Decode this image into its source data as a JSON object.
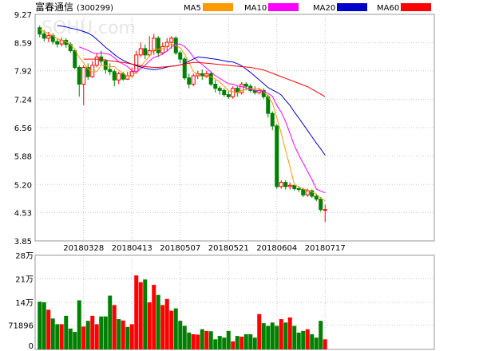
{
  "header": {
    "title": "富春通信",
    "code": "(300299)",
    "legend": [
      {
        "label": "MA5",
        "color": "#ff9900"
      },
      {
        "label": "MA10",
        "color": "#ff00ff"
      },
      {
        "label": "MA20",
        "color": "#0000cc"
      },
      {
        "label": "MA60",
        "color": "#ff0000"
      }
    ]
  },
  "watermark": "SOHU.com",
  "colors": {
    "up": "#ff0000",
    "down": "#008000",
    "grid": "#c8c8c8",
    "frame": "#999999"
  },
  "chart_data": [
    {
      "type": "candlestick",
      "title": "富春通信(300299)",
      "ylim": [
        3.85,
        9.27
      ],
      "yticks": [
        "9.27",
        "8.59",
        "7.92",
        "7.24",
        "6.56",
        "5.88",
        "5.20",
        "4.53",
        "3.85"
      ],
      "ytick_values": [
        9.27,
        8.59,
        7.92,
        7.24,
        6.56,
        5.88,
        5.2,
        4.53,
        3.85
      ],
      "xtick_labels": [
        "20180328",
        "20180413",
        "20180507",
        "20180521",
        "20180604",
        "20180717"
      ],
      "xtick_index": [
        10,
        21,
        32,
        43,
        54,
        65
      ],
      "ohlc": [
        [
          8.95,
          8.8,
          9.0,
          8.72
        ],
        [
          8.8,
          8.7,
          8.9,
          8.62
        ],
        [
          8.7,
          8.76,
          8.85,
          8.6
        ],
        [
          8.76,
          8.62,
          8.82,
          8.55
        ],
        [
          8.62,
          8.56,
          8.68,
          8.48
        ],
        [
          8.56,
          8.65,
          8.72,
          8.5
        ],
        [
          8.65,
          8.55,
          8.7,
          8.47
        ],
        [
          8.55,
          8.4,
          8.6,
          8.35
        ],
        [
          8.4,
          8.0,
          8.45,
          7.95
        ],
        [
          8.0,
          7.6,
          8.05,
          7.3
        ],
        [
          7.6,
          8.0,
          8.05,
          7.1
        ],
        [
          8.0,
          7.78,
          8.1,
          7.7
        ],
        [
          7.78,
          8.05,
          8.15,
          7.75
        ],
        [
          8.05,
          8.25,
          8.35,
          8.0
        ],
        [
          8.25,
          8.15,
          8.4,
          8.05
        ],
        [
          8.15,
          7.95,
          8.2,
          7.85
        ],
        [
          7.95,
          7.9,
          8.1,
          7.82
        ],
        [
          7.9,
          7.7,
          7.95,
          7.55
        ],
        [
          7.7,
          7.85,
          7.9,
          7.6
        ],
        [
          7.85,
          7.72,
          7.9,
          7.68
        ],
        [
          7.72,
          7.8,
          7.9,
          7.7
        ],
        [
          7.8,
          7.9,
          8.0,
          7.75
        ],
        [
          7.9,
          8.3,
          8.4,
          7.85
        ],
        [
          8.3,
          8.45,
          8.6,
          8.25
        ],
        [
          8.45,
          8.3,
          8.55,
          8.2
        ],
        [
          8.3,
          8.4,
          8.75,
          8.25
        ],
        [
          8.4,
          8.7,
          8.8,
          8.3
        ],
        [
          8.7,
          8.35,
          8.75,
          8.25
        ],
        [
          8.35,
          8.5,
          8.6,
          8.3
        ],
        [
          8.5,
          8.6,
          8.7,
          8.4
        ],
        [
          8.6,
          8.7,
          8.75,
          8.45
        ],
        [
          8.7,
          8.35,
          8.75,
          8.3
        ],
        [
          8.35,
          8.2,
          8.4,
          8.1
        ],
        [
          8.2,
          7.75,
          8.25,
          7.7
        ],
        [
          7.75,
          7.6,
          7.85,
          7.5
        ],
        [
          7.6,
          7.8,
          7.85,
          7.55
        ],
        [
          7.8,
          7.85,
          7.92,
          7.72
        ],
        [
          7.85,
          7.8,
          7.95,
          7.7
        ],
        [
          7.8,
          7.85,
          7.92,
          7.75
        ],
        [
          7.85,
          7.6,
          7.9,
          7.55
        ],
        [
          7.6,
          7.5,
          7.7,
          7.4
        ],
        [
          7.5,
          7.45,
          7.55,
          7.35
        ],
        [
          7.45,
          7.35,
          7.5,
          7.3
        ],
        [
          7.35,
          7.3,
          7.45,
          7.25
        ],
        [
          7.3,
          7.5,
          7.55,
          7.25
        ],
        [
          7.5,
          7.4,
          7.55,
          7.3
        ],
        [
          7.4,
          7.6,
          7.65,
          7.35
        ],
        [
          7.6,
          7.55,
          7.65,
          7.45
        ],
        [
          7.55,
          7.45,
          7.6,
          7.4
        ],
        [
          7.45,
          7.4,
          7.55,
          7.35
        ],
        [
          7.4,
          7.45,
          7.5,
          7.35
        ],
        [
          7.45,
          7.3,
          7.5,
          7.25
        ],
        [
          7.3,
          6.9,
          7.35,
          6.8
        ],
        [
          6.9,
          6.6,
          6.95,
          6.5
        ],
        [
          6.6,
          5.15,
          6.65,
          5.1
        ],
        [
          5.15,
          5.25,
          5.3,
          5.1
        ],
        [
          5.25,
          5.15,
          5.3,
          5.08
        ],
        [
          5.15,
          5.18,
          5.25,
          5.08
        ],
        [
          5.18,
          5.1,
          5.2,
          5.05
        ],
        [
          5.1,
          5.08,
          5.15,
          5.02
        ],
        [
          5.08,
          4.95,
          5.12,
          4.9
        ],
        [
          4.95,
          5.05,
          5.1,
          4.9
        ],
        [
          5.05,
          4.92,
          5.08,
          4.88
        ],
        [
          4.92,
          4.85,
          4.98,
          4.8
        ],
        [
          4.85,
          4.6,
          4.9,
          4.55
        ],
        [
          4.6,
          4.6,
          4.72,
          4.3
        ]
      ],
      "ma": {
        "MA5": [
          8.9,
          8.86,
          8.81,
          8.76,
          8.69,
          8.65,
          8.61,
          8.55,
          8.43,
          8.24,
          8.11,
          7.96,
          7.89,
          7.9,
          8.05,
          8.04,
          8.02,
          8.02,
          7.93,
          7.86,
          7.79,
          7.79,
          7.89,
          8.03,
          8.15,
          8.27,
          8.43,
          8.44,
          8.45,
          8.51,
          8.57,
          8.52,
          8.47,
          8.32,
          8.12,
          7.9,
          7.84,
          7.78,
          7.78,
          7.78,
          7.72,
          7.65,
          7.55,
          7.44,
          7.42,
          7.4,
          7.45,
          7.47,
          7.5,
          7.48,
          7.5,
          7.43,
          7.3,
          7.15,
          6.79,
          6.42,
          6.01,
          5.62,
          5.19,
          5.15,
          5.09,
          5.07,
          5.02,
          4.97,
          4.87,
          4.81
        ],
        "MA10": [
          null,
          null,
          null,
          null,
          null,
          null,
          null,
          null,
          null,
          8.49,
          8.45,
          8.41,
          8.35,
          8.33,
          8.35,
          8.33,
          8.31,
          8.23,
          8.14,
          8.08,
          8.02,
          7.92,
          7.89,
          7.97,
          8.05,
          8.16,
          8.24,
          8.27,
          8.33,
          8.39,
          8.49,
          8.56,
          8.56,
          8.5,
          8.39,
          8.25,
          8.15,
          8.07,
          7.98,
          7.89,
          7.8,
          7.74,
          7.67,
          7.61,
          7.6,
          7.56,
          7.54,
          7.51,
          7.48,
          7.45,
          7.45,
          7.43,
          7.38,
          7.31,
          7.09,
          6.93,
          6.7,
          6.42,
          6.13,
          5.91,
          5.71,
          5.51,
          5.32,
          5.09,
          5.04,
          5.0
        ],
        "MA20": [
          9.0,
          8.99,
          8.97,
          8.94,
          8.92,
          8.89,
          8.86,
          8.82,
          8.76,
          8.67,
          8.58,
          8.48,
          8.4,
          8.31,
          8.23,
          8.17,
          8.12,
          8.08,
          8.04,
          8.01,
          7.98,
          7.96,
          7.95,
          7.96,
          7.98,
          8.01,
          8.03,
          8.04,
          8.06,
          8.09,
          8.15,
          8.2,
          8.25,
          8.24,
          8.23,
          8.21,
          8.2,
          8.18,
          8.16,
          8.14,
          8.13,
          8.09,
          8.04,
          7.96,
          7.88,
          7.79,
          7.7,
          7.61,
          7.52,
          7.46,
          7.41,
          7.34,
          7.21,
          7.09,
          6.93,
          6.79,
          6.64,
          6.49,
          6.34,
          6.19,
          6.05,
          5.9
        ],
        "MA60": [
          8.2,
          8.2,
          8.2,
          8.2,
          8.19,
          8.18,
          8.16,
          8.15,
          8.13,
          8.12,
          8.1,
          8.08,
          8.06,
          8.04,
          8.02,
          8.01,
          8.0,
          8.0,
          8.01,
          8.02,
          8.03,
          8.04,
          8.06,
          8.08,
          8.1,
          8.12,
          8.12,
          8.11,
          8.1,
          8.09,
          8.08,
          8.07,
          8.06,
          8.05,
          8.04,
          8.03,
          8.02,
          8.01,
          8.0,
          7.98,
          7.96,
          7.94,
          7.9,
          7.86,
          7.82,
          7.78,
          7.74,
          7.7,
          7.66,
          7.62,
          7.58,
          7.54,
          7.48,
          7.42,
          7.36,
          7.3
        ]
      },
      "ma_start_index": {
        "MA5": 0,
        "MA10": 0,
        "MA20": 4,
        "MA60": 10
      }
    },
    {
      "type": "bar",
      "title": "",
      "ylim": [
        0,
        280000
      ],
      "yticks": [
        "28万",
        "21万",
        "14万",
        "71896",
        "0"
      ],
      "ytick_values": [
        280000,
        210000,
        140000,
        71896,
        0
      ],
      "values": [
        142000,
        140000,
        118000,
        92000,
        75000,
        75000,
        100000,
        62000,
        52000,
        146000,
        68000,
        85000,
        100000,
        75000,
        98000,
        98000,
        160000,
        132000,
        90000,
        86000,
        67000,
        75000,
        220000,
        200000,
        208000,
        140000,
        192000,
        162000,
        132000,
        150000,
        115000,
        122000,
        85000,
        70000,
        50000,
        45000,
        44000,
        60000,
        55000,
        54000,
        30000,
        40000,
        35000,
        55000,
        24000,
        40000,
        38000,
        45000,
        45000,
        35000,
        105000,
        78000,
        70000,
        80000,
        70000,
        90000,
        80000,
        95000,
        70000,
        50000,
        55000,
        60000,
        45000,
        35000,
        85000,
        30000
      ],
      "colors_up": [
        false,
        false,
        true,
        false,
        false,
        true,
        false,
        false,
        false,
        false,
        true,
        false,
        true,
        true,
        false,
        false,
        false,
        true,
        false,
        true,
        false,
        true,
        true,
        true,
        false,
        true,
        true,
        false,
        true,
        true,
        true,
        false,
        false,
        false,
        false,
        true,
        true,
        false,
        true,
        false,
        false,
        false,
        false,
        false,
        true,
        false,
        true,
        false,
        false,
        false,
        true,
        false,
        false,
        false,
        false,
        true,
        false,
        true,
        false,
        false,
        false,
        true,
        false,
        false,
        false,
        true
      ]
    }
  ]
}
